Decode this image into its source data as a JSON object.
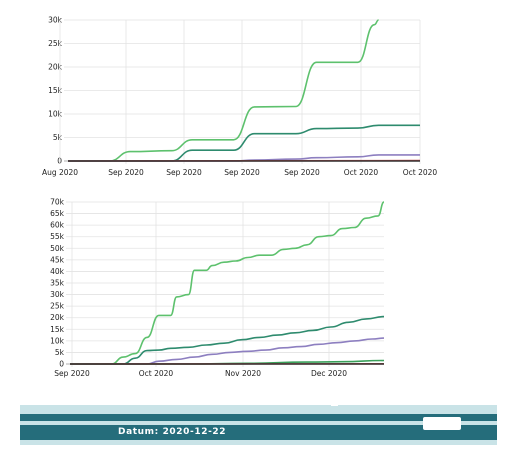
{
  "chart_data": [
    {
      "type": "line",
      "title": "",
      "xlabel": "",
      "ylabel": "",
      "x_tick_labels": [
        "Aug 2020",
        "Sep 2020",
        "Sep 2020",
        "Sep 2020",
        "Sep 2020",
        "Oct 2020",
        "Oct 2020"
      ],
      "y_tick_labels": [
        "0",
        "5k",
        "10k",
        "15k",
        "20k",
        "25k",
        "30k"
      ],
      "ylim": [
        0,
        30000
      ],
      "grid": true,
      "series": [
        {
          "color": "#5dc16d",
          "values": [
            [
              0,
              0
            ],
            [
              2,
              0
            ],
            [
              3,
              2000
            ],
            [
              5,
              2200
            ],
            [
              6,
              4500
            ],
            [
              8,
              4500
            ],
            [
              9,
              11500
            ],
            [
              11,
              11600
            ],
            [
              12,
              21000
            ],
            [
              14,
              21000
            ],
            [
              14.8,
              29000
            ],
            [
              15,
              30000
            ]
          ]
        },
        {
          "color": "#2e8b6e",
          "values": [
            [
              0,
              0
            ],
            [
              5,
              0
            ],
            [
              6,
              2300
            ],
            [
              8,
              2300
            ],
            [
              9,
              5800
            ],
            [
              11,
              5800
            ],
            [
              12,
              6900
            ],
            [
              14,
              7000
            ],
            [
              15,
              7600
            ],
            [
              17,
              7600
            ]
          ]
        },
        {
          "color": "#8d7fc0",
          "values": [
            [
              0,
              0
            ],
            [
              8,
              0
            ],
            [
              9,
              200
            ],
            [
              11,
              400
            ],
            [
              12,
              700
            ],
            [
              14,
              900
            ],
            [
              15,
              1300
            ],
            [
              17,
              1300
            ]
          ]
        },
        {
          "color": "#c84a4a",
          "values": [
            [
              0,
              0
            ],
            [
              17,
              80
            ]
          ]
        },
        {
          "color": "#333333",
          "values": [
            [
              0,
              0
            ],
            [
              17,
              0
            ]
          ]
        }
      ]
    },
    {
      "type": "line",
      "title": "",
      "xlabel": "",
      "ylabel": "",
      "x_tick_labels": [
        "Sep 2020",
        "Oct 2020",
        "Nov 2020",
        "Dec 2020"
      ],
      "y_tick_labels": [
        "0",
        "5k",
        "10k",
        "15k",
        "20k",
        "25k",
        "30k",
        "35k",
        "40k",
        "45k",
        "50k",
        "55k",
        "60k",
        "65k",
        "70k"
      ],
      "ylim": [
        0,
        70000
      ],
      "grid": true,
      "series": [
        {
          "color": "#5dc16d",
          "values": [
            [
              0,
              0
            ],
            [
              7,
              0
            ],
            [
              9,
              3000
            ],
            [
              11,
              4500
            ],
            [
              13,
              11500
            ],
            [
              15,
              21000
            ],
            [
              17,
              21000
            ],
            [
              18,
              29000
            ],
            [
              20,
              30000
            ],
            [
              21,
              40500
            ],
            [
              23,
              40500
            ],
            [
              24,
              42500
            ],
            [
              26,
              44000
            ],
            [
              28,
              44500
            ],
            [
              30,
              46000
            ],
            [
              32,
              47000
            ],
            [
              34,
              47000
            ],
            [
              36,
              49500
            ],
            [
              38,
              50000
            ],
            [
              40,
              51500
            ],
            [
              42,
              55000
            ],
            [
              44,
              55500
            ],
            [
              46,
              58500
            ],
            [
              48,
              59000
            ],
            [
              50,
              63000
            ],
            [
              52,
              64000
            ],
            [
              53,
              70000
            ]
          ]
        },
        {
          "color": "#2e8b6e",
          "values": [
            [
              0,
              0
            ],
            [
              9,
              0
            ],
            [
              11,
              2500
            ],
            [
              13,
              5800
            ],
            [
              15,
              6000
            ],
            [
              17,
              6800
            ],
            [
              20,
              7200
            ],
            [
              23,
              8200
            ],
            [
              26,
              9000
            ],
            [
              29,
              10500
            ],
            [
              32,
              11500
            ],
            [
              35,
              12500
            ],
            [
              38,
              13500
            ],
            [
              41,
              14500
            ],
            [
              44,
              16000
            ],
            [
              47,
              18000
            ],
            [
              50,
              19500
            ],
            [
              53,
              20500
            ]
          ]
        },
        {
          "color": "#8d7fc0",
          "values": [
            [
              0,
              0
            ],
            [
              13,
              0
            ],
            [
              15,
              1200
            ],
            [
              18,
              2000
            ],
            [
              21,
              3000
            ],
            [
              24,
              4200
            ],
            [
              27,
              5000
            ],
            [
              30,
              5500
            ],
            [
              33,
              6000
            ],
            [
              36,
              7000
            ],
            [
              39,
              7500
            ],
            [
              42,
              8500
            ],
            [
              45,
              9200
            ],
            [
              48,
              10000
            ],
            [
              51,
              10800
            ],
            [
              53,
              11200
            ]
          ]
        },
        {
          "color": "#3aa05a",
          "values": [
            [
              0,
              0
            ],
            [
              20,
              0
            ],
            [
              30,
              300
            ],
            [
              40,
              800
            ],
            [
              46,
              1000
            ],
            [
              53,
              1500
            ]
          ]
        },
        {
          "color": "#c84a4a",
          "values": [
            [
              0,
              0
            ],
            [
              53,
              100
            ]
          ]
        },
        {
          "color": "#333333",
          "values": [
            [
              0,
              0
            ],
            [
              53,
              0
            ]
          ]
        }
      ]
    }
  ],
  "footer": {
    "date_label": "Datum: 2020-12-22"
  }
}
